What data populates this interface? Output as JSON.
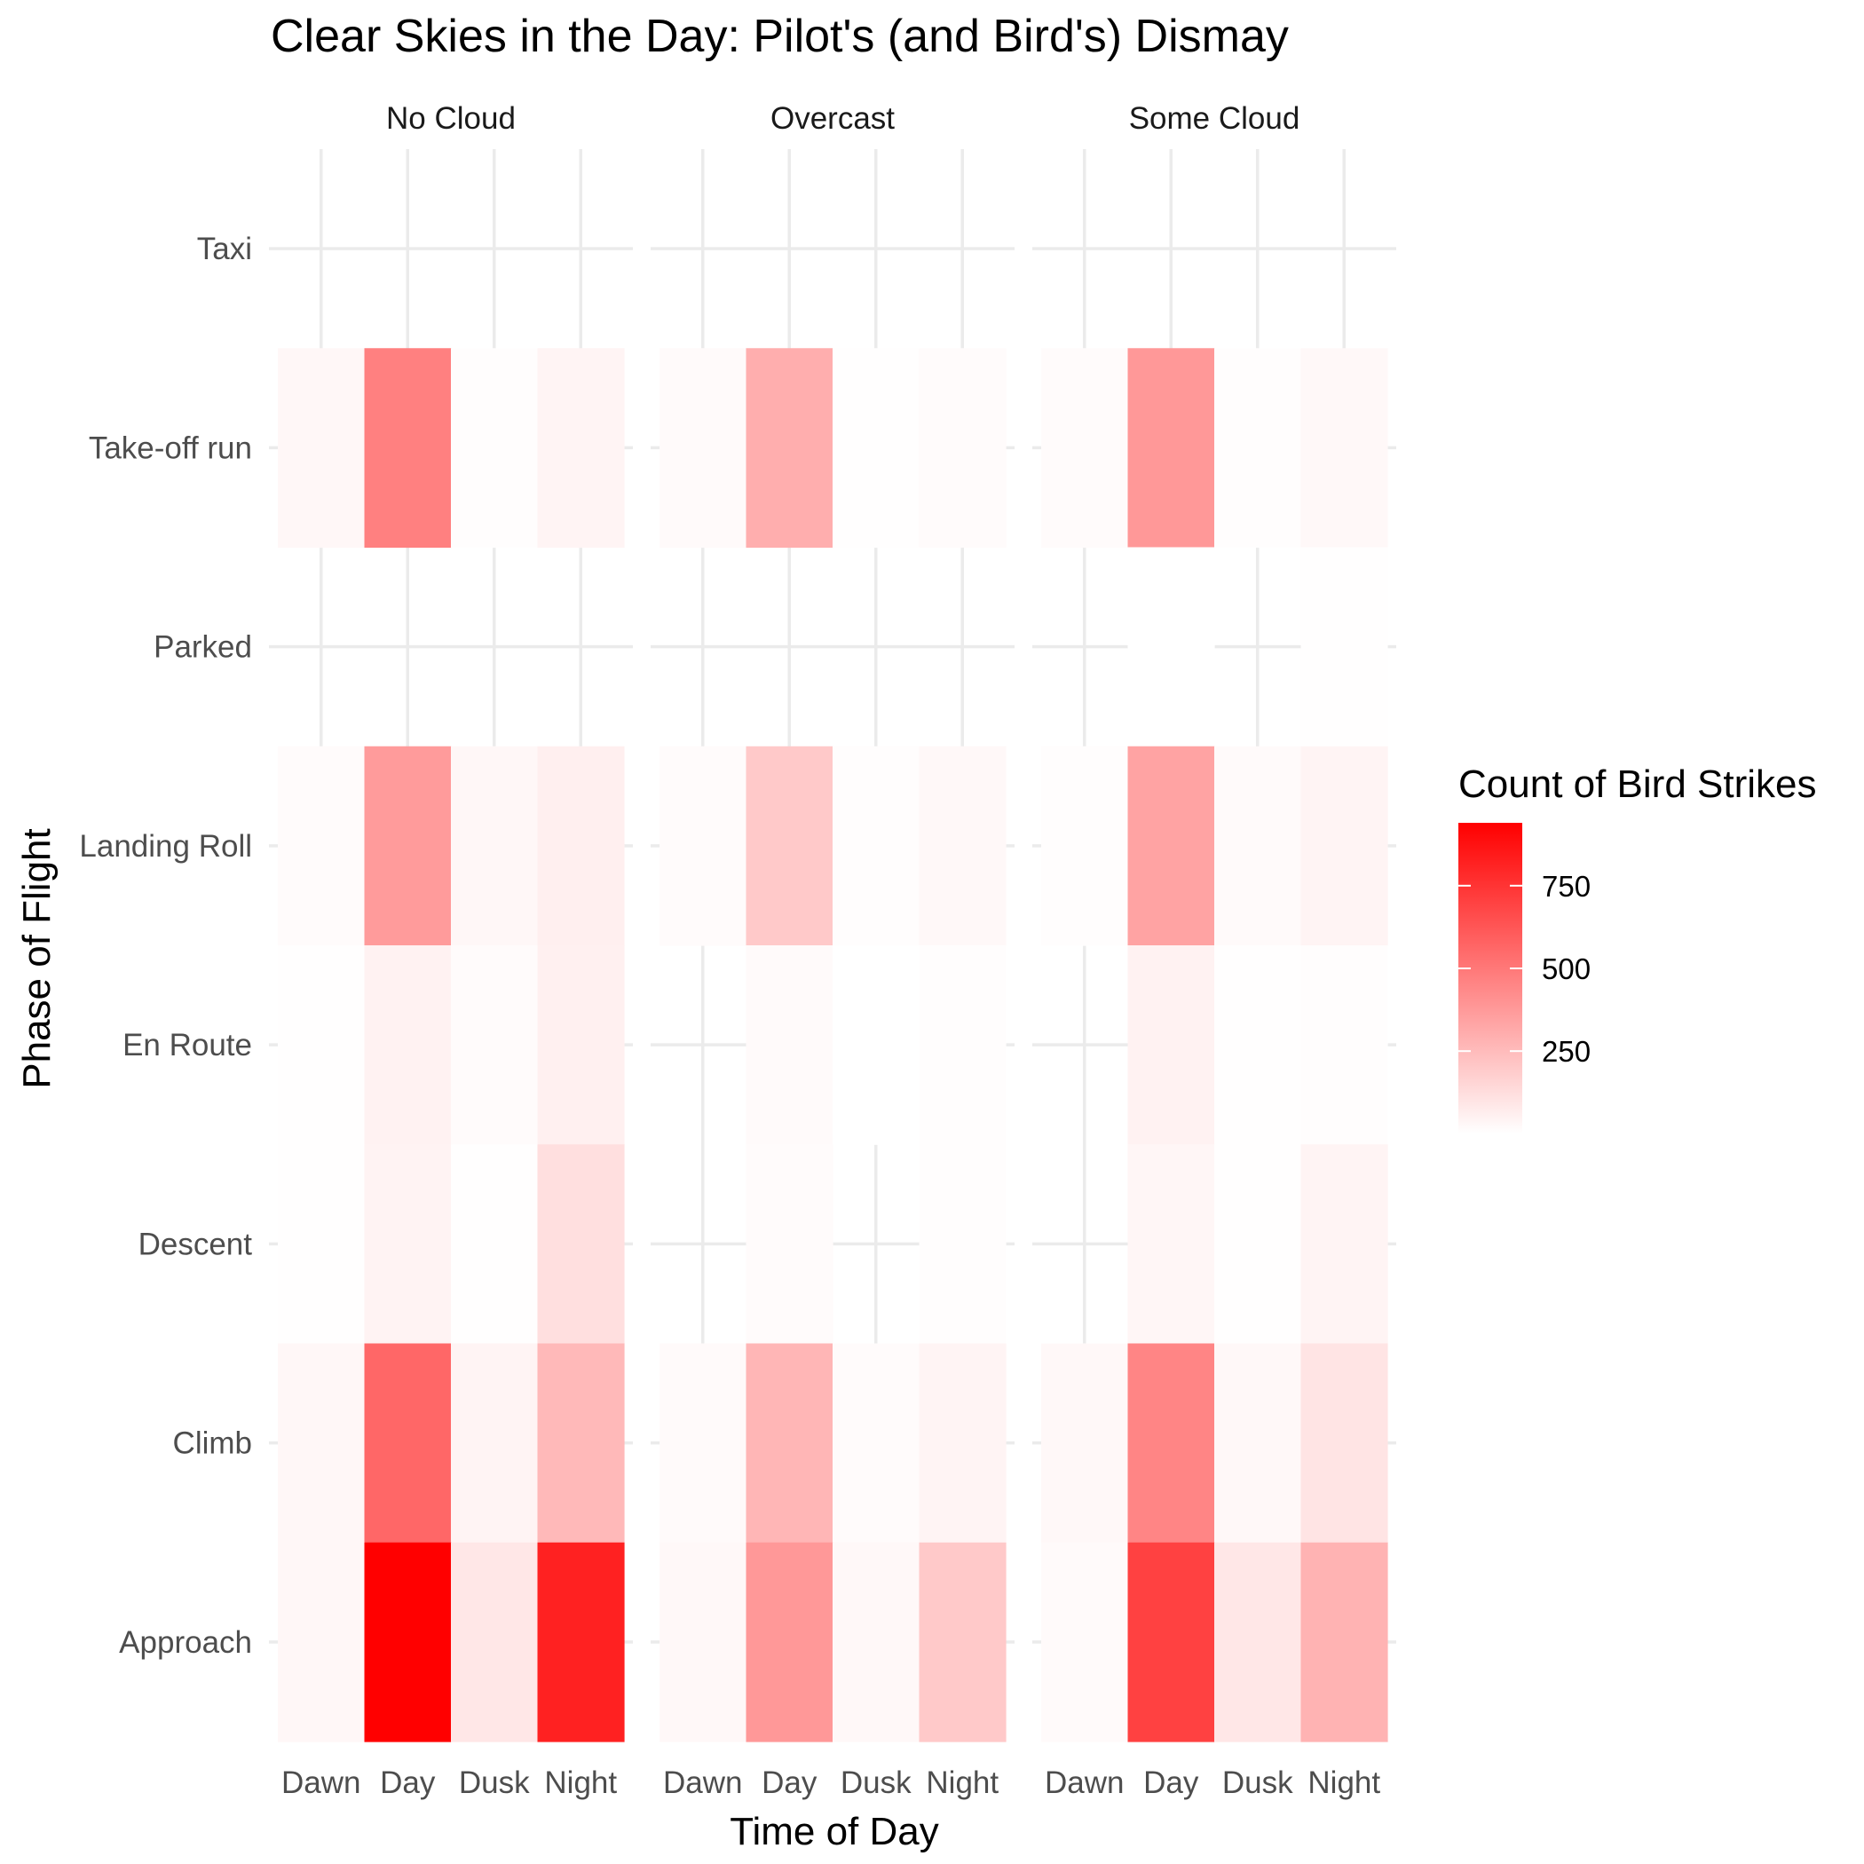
{
  "chart_data": {
    "type": "heatmap",
    "title": "Clear Skies in the Day: Pilot's (and Bird's) Dismay",
    "xlabel": "Time of Day",
    "ylabel": "Phase of Flight",
    "facets": [
      "No Cloud",
      "Overcast",
      "Some Cloud"
    ],
    "x_categories": [
      "Dawn",
      "Day",
      "Dusk",
      "Night"
    ],
    "y_categories": [
      "Taxi",
      "Take-off run",
      "Parked",
      "Landing Roll",
      "En Route",
      "Descent",
      "Climb",
      "Approach"
    ],
    "legend_title": "Count of Bird Strikes",
    "legend_ticks": [
      250,
      500,
      750
    ],
    "color_range": [
      1,
      940
    ],
    "color_low": "#ffffff",
    "color_high": "#ff0000",
    "grid": "on",
    "legend_placement": "right",
    "cells": {
      "No Cloud": {
        "Take-off run": {
          "Dawn": 30,
          "Day": 470,
          "Dusk": 10,
          "Night": 40
        },
        "Parked": {
          "Dawn": null,
          "Day": null,
          "Dusk": null,
          "Night": null
        },
        "Landing Roll": {
          "Dawn": 15,
          "Day": 370,
          "Dusk": 30,
          "Night": 60
        },
        "En Route": {
          "Dawn": 5,
          "Day": 50,
          "Dusk": 15,
          "Night": 55
        },
        "Descent": {
          "Dawn": 5,
          "Day": 45,
          "Dusk": 3,
          "Night": 120
        },
        "Climb": {
          "Dawn": 30,
          "Day": 560,
          "Dusk": 40,
          "Night": 260
        },
        "Approach": {
          "Dawn": 30,
          "Day": 940,
          "Dusk": 90,
          "Night": 820
        }
      },
      "Overcast": {
        "Take-off run": {
          "Dawn": 20,
          "Day": 300,
          "Dusk": 5,
          "Night": 15
        },
        "Landing Roll": {
          "Dawn": 15,
          "Day": 200,
          "Dusk": 10,
          "Night": 25
        },
        "En Route": {
          "Day": 20,
          "Dusk": 2,
          "Night": 10
        },
        "Descent": {
          "Day": 15,
          "Night": 10
        },
        "Climb": {
          "Dawn": 20,
          "Day": 270,
          "Dusk": 15,
          "Night": 40
        },
        "Approach": {
          "Dawn": 25,
          "Day": 380,
          "Dusk": 25,
          "Night": 200
        }
      },
      "Some Cloud": {
        "Take-off run": {
          "Dawn": 15,
          "Day": 380,
          "Dusk": 10,
          "Night": 25
        },
        "Parked": {
          "Day": 2,
          "Night": 3
        },
        "Landing Roll": {
          "Dawn": 10,
          "Day": 340,
          "Dusk": 20,
          "Night": 40
        },
        "En Route": {
          "Day": 50,
          "Dusk": 3,
          "Night": 8
        },
        "Descent": {
          "Day": 35,
          "Dusk": 3,
          "Night": 40
        },
        "Climb": {
          "Dawn": 25,
          "Day": 450,
          "Dusk": 25,
          "Night": 100
        },
        "Approach": {
          "Dawn": 20,
          "Day": 700,
          "Dusk": 90,
          "Night": 280
        }
      }
    }
  }
}
